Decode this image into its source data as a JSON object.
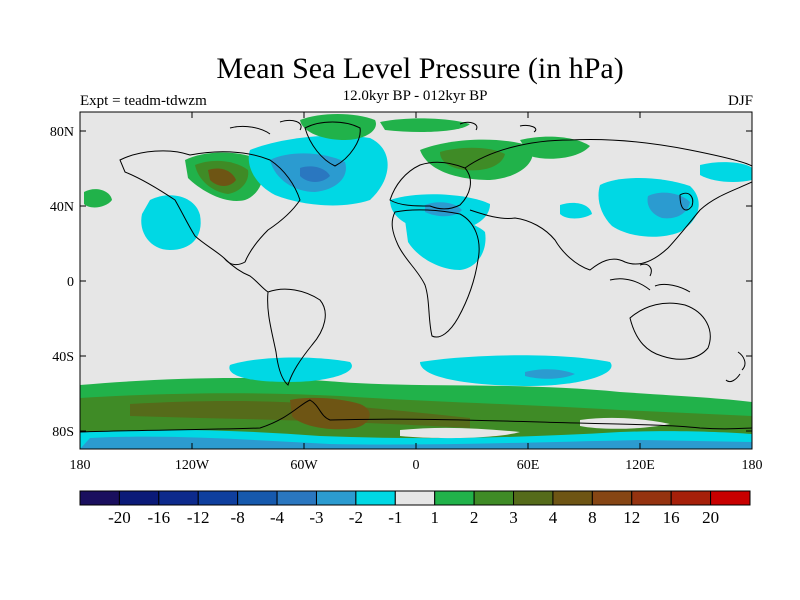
{
  "title": "Mean Sea Level Pressure (in hPa)",
  "subtitle": "12.0kyr BP - 012kyr BP",
  "expt_label": "Expt = teadm-tdwzm",
  "season": "DJF",
  "lat_ticks": [
    "80N",
    "40N",
    "0",
    "40S",
    "80S"
  ],
  "lon_ticks": [
    "180",
    "120W",
    "60W",
    "0",
    "60E",
    "120E",
    "180"
  ],
  "colorbar": {
    "colors": [
      "#1a0f5e",
      "#0b1a78",
      "#0d2a8c",
      "#0f3f9e",
      "#1659ad",
      "#2a77c0",
      "#2b9bd0",
      "#00d8e4",
      "#e6e6e6",
      "#21b24a",
      "#3f8b26",
      "#556b1a",
      "#6e5514",
      "#864614",
      "#953310",
      "#a6200a",
      "#c80000"
    ],
    "labels": [
      "-20",
      "-16",
      "-12",
      "-8",
      "-4",
      "-3",
      "-2",
      "-1",
      "1",
      "2",
      "3",
      "4",
      "8",
      "12",
      "16",
      "20"
    ]
  },
  "colors": {
    "neutral": "#e6e6e6",
    "cyan": "#00d8e4",
    "blue": "#2b9bd0",
    "dark_blue": "#2a77c0",
    "green": "#21b24a",
    "dark_green": "#3f8b26",
    "olive": "#556b1a",
    "brown": "#6e5514"
  }
}
